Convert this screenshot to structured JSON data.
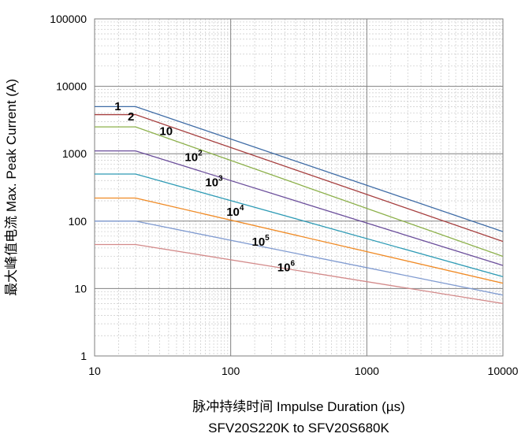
{
  "chart_data": {
    "type": "line",
    "xlabel": "脉冲持续时间 Impulse Duration (µs)",
    "ylabel": "最大峰值电流 Max. Peak Current (A)",
    "subtitle": "SFV20S220K to SFV20S680K",
    "x_scale": "log",
    "y_scale": "log",
    "xlim": [
      10,
      10000
    ],
    "ylim": [
      1,
      100000
    ],
    "x_ticks": [
      "10",
      "100",
      "1000",
      "10000"
    ],
    "y_ticks": [
      "1",
      "10",
      "100",
      "1000",
      "10000",
      "100000"
    ],
    "grid": true,
    "series": [
      {
        "name": "1",
        "label_base": "1",
        "label_sup": "",
        "color": "#3F6CA6",
        "x": [
          10,
          20,
          10000
        ],
        "y": [
          5000,
          5000,
          70
        ]
      },
      {
        "name": "2",
        "label_base": "2",
        "label_sup": "",
        "color": "#A63F3F",
        "x": [
          10,
          20,
          10000
        ],
        "y": [
          3800,
          3800,
          50
        ]
      },
      {
        "name": "10",
        "label_base": "10",
        "label_sup": "",
        "color": "#8CB04A",
        "x": [
          10,
          20,
          10000
        ],
        "y": [
          2500,
          2500,
          30
        ]
      },
      {
        "name": "10^2",
        "label_base": "10",
        "label_sup": "2",
        "color": "#6B4E9B",
        "x": [
          10,
          20,
          10000
        ],
        "y": [
          1100,
          1100,
          22
        ]
      },
      {
        "name": "10^3",
        "label_base": "10",
        "label_sup": "3",
        "color": "#2E9BB5",
        "x": [
          10,
          20,
          10000
        ],
        "y": [
          500,
          500,
          15
        ]
      },
      {
        "name": "10^4",
        "label_base": "10",
        "label_sup": "4",
        "color": "#F08A24",
        "x": [
          10,
          20,
          10000
        ],
        "y": [
          220,
          220,
          12
        ]
      },
      {
        "name": "10^5",
        "label_base": "10",
        "label_sup": "5",
        "color": "#7F9AD0",
        "x": [
          10,
          20,
          10000
        ],
        "y": [
          100,
          100,
          8
        ]
      },
      {
        "name": "10^6",
        "label_base": "10",
        "label_sup": "6",
        "color": "#D38A8A",
        "x": [
          10,
          20,
          10000
        ],
        "y": [
          45,
          45,
          6
        ]
      }
    ],
    "curve_label_positions": [
      {
        "x": 14,
        "y": 4400
      },
      {
        "x": 17.5,
        "y": 3100
      },
      {
        "x": 30,
        "y": 1900
      },
      {
        "x": 46,
        "y": 780
      },
      {
        "x": 65,
        "y": 330
      },
      {
        "x": 93,
        "y": 120
      },
      {
        "x": 143,
        "y": 43
      },
      {
        "x": 220,
        "y": 18
      }
    ]
  }
}
